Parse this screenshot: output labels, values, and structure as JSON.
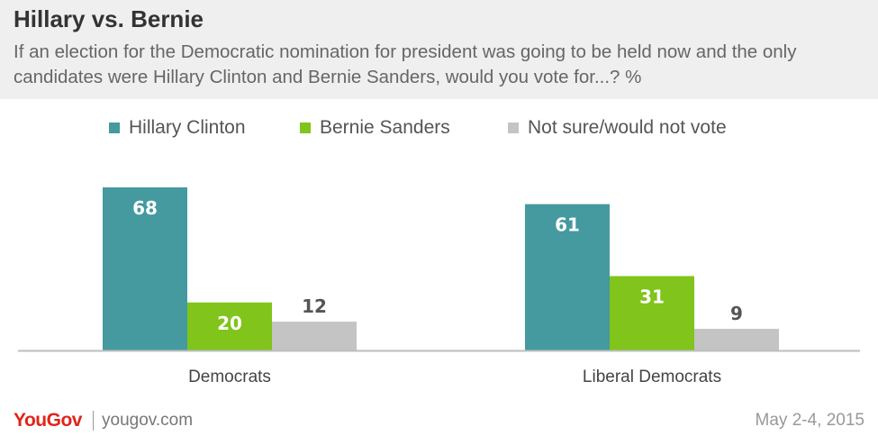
{
  "header": {
    "title": "Hillary vs. Bernie",
    "subtitle": "If an election for the Democratic nomination for president was going to be held now and the only candidates were Hillary Clinton and Bernie Sanders, would you vote for...? %"
  },
  "legend": {
    "items": [
      {
        "label": "Hillary Clinton",
        "color": "#449a9e"
      },
      {
        "label": "Bernie Sanders",
        "color": "#80c41c"
      },
      {
        "label": "Not sure/would not vote",
        "color": "#c4c4c4"
      }
    ]
  },
  "chart_data": {
    "type": "bar",
    "categories": [
      "Democrats",
      "Liberal Democrats"
    ],
    "series": [
      {
        "name": "Hillary Clinton",
        "values": [
          68,
          61
        ],
        "color": "#449a9e"
      },
      {
        "name": "Bernie Sanders",
        "values": [
          20,
          31
        ],
        "color": "#80c41c"
      },
      {
        "name": "Not sure/would not vote",
        "values": [
          12,
          9
        ],
        "color": "#c4c4c4"
      }
    ],
    "title": "Hillary vs. Bernie",
    "xlabel": "",
    "ylabel": "",
    "ylim": [
      0,
      100
    ],
    "grid": false,
    "legend_position": "top"
  },
  "footer": {
    "logo": "YouGov",
    "site": "yougov.com",
    "date": "May 2-4, 2015"
  }
}
